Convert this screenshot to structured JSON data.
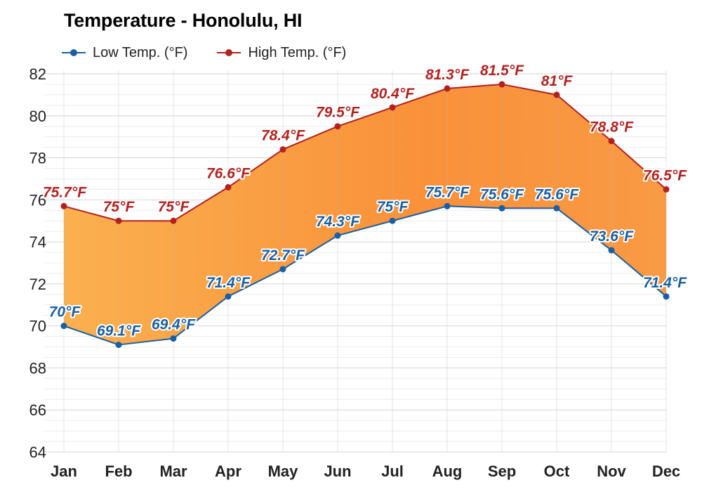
{
  "chart_data": {
    "type": "area",
    "title": "Temperature - Honolulu, HI",
    "xlabel": "",
    "ylabel": "",
    "categories": [
      "Jan",
      "Feb",
      "Mar",
      "Apr",
      "May",
      "Jun",
      "Jul",
      "Aug",
      "Sep",
      "Oct",
      "Nov",
      "Dec"
    ],
    "ylim": [
      64,
      82
    ],
    "yticks": [
      64,
      66,
      68,
      70,
      72,
      74,
      76,
      78,
      80,
      82
    ],
    "grid": true,
    "legend_position": "top-left",
    "fill_between": true,
    "series": [
      {
        "name": "Low Temp. (°F)",
        "color": "#1a5fa3",
        "values": [
          70,
          69.1,
          69.4,
          71.4,
          72.7,
          74.3,
          75,
          75.7,
          75.6,
          75.6,
          73.6,
          71.4
        ],
        "labels": [
          "70°F",
          "69.1°F",
          "69.4°F",
          "71.4°F",
          "72.7°F",
          "74.3°F",
          "75°F",
          "75.7°F",
          "75.6°F",
          "75.6°F",
          "73.6°F",
          "71.4°F"
        ]
      },
      {
        "name": "High Temp. (°F)",
        "color": "#b3211f",
        "values": [
          75.7,
          75,
          75,
          76.6,
          78.4,
          79.5,
          80.4,
          81.3,
          81.5,
          81,
          78.8,
          76.5
        ],
        "labels": [
          "75.7°F",
          "75°F",
          "75°F",
          "76.6°F",
          "78.4°F",
          "79.5°F",
          "80.4°F",
          "81.3°F",
          "81.5°F",
          "81°F",
          "78.8°F",
          "76.5°F"
        ]
      }
    ]
  }
}
